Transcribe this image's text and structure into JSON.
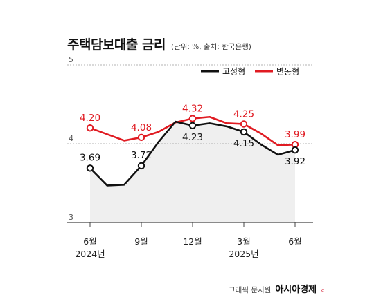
{
  "header": {
    "title": "주택담보대출 금리",
    "subtitle": "(단위: %, 출처: 한국은행)"
  },
  "credit": {
    "text": "그래픽 문지원",
    "brand": "아시아경제"
  },
  "colors": {
    "fixed": "#111111",
    "variable": "#e01b22",
    "area": "#efefef",
    "grid": "#9a9a9a"
  },
  "chart_data": {
    "type": "line",
    "yticks": [
      "5",
      "4",
      "3"
    ],
    "ylim": [
      3,
      5
    ],
    "xlim": [
      0,
      12
    ],
    "xticks": [
      {
        "x": 0,
        "label": "6월",
        "year": "2024년"
      },
      {
        "x": 3,
        "label": "9월",
        "year": ""
      },
      {
        "x": 6,
        "label": "12월",
        "year": ""
      },
      {
        "x": 9,
        "label": "3월",
        "year": "2025년"
      },
      {
        "x": 12,
        "label": "6월",
        "year": ""
      }
    ],
    "legend": {
      "position": "top-right"
    },
    "series": [
      {
        "name": "고정형",
        "key": "fixed",
        "x": [
          0,
          1,
          2,
          3,
          4,
          5,
          6,
          7,
          8,
          9,
          10,
          11,
          12
        ],
        "values": [
          3.69,
          3.47,
          3.48,
          3.72,
          4.02,
          4.28,
          4.23,
          4.26,
          4.22,
          4.15,
          3.99,
          3.86,
          3.92
        ],
        "labels": [
          {
            "i": 0,
            "text": "3.69"
          },
          {
            "i": 3,
            "text": "3.72"
          },
          {
            "i": 6,
            "text": "4.23"
          },
          {
            "i": 9,
            "text": "4.15"
          },
          {
            "i": 12,
            "text": "3.92"
          }
        ]
      },
      {
        "name": "변동형",
        "key": "variable",
        "x": [
          0,
          1,
          2,
          3,
          4,
          5,
          6,
          7,
          8,
          9,
          10,
          11,
          12
        ],
        "values": [
          4.2,
          4.12,
          4.04,
          4.08,
          4.15,
          4.27,
          4.32,
          4.34,
          4.26,
          4.25,
          4.13,
          3.98,
          3.99
        ],
        "labels": [
          {
            "i": 0,
            "text": "4.20"
          },
          {
            "i": 3,
            "text": "4.08"
          },
          {
            "i": 6,
            "text": "4.32"
          },
          {
            "i": 9,
            "text": "4.25"
          },
          {
            "i": 12,
            "text": "3.99"
          }
        ]
      }
    ]
  }
}
